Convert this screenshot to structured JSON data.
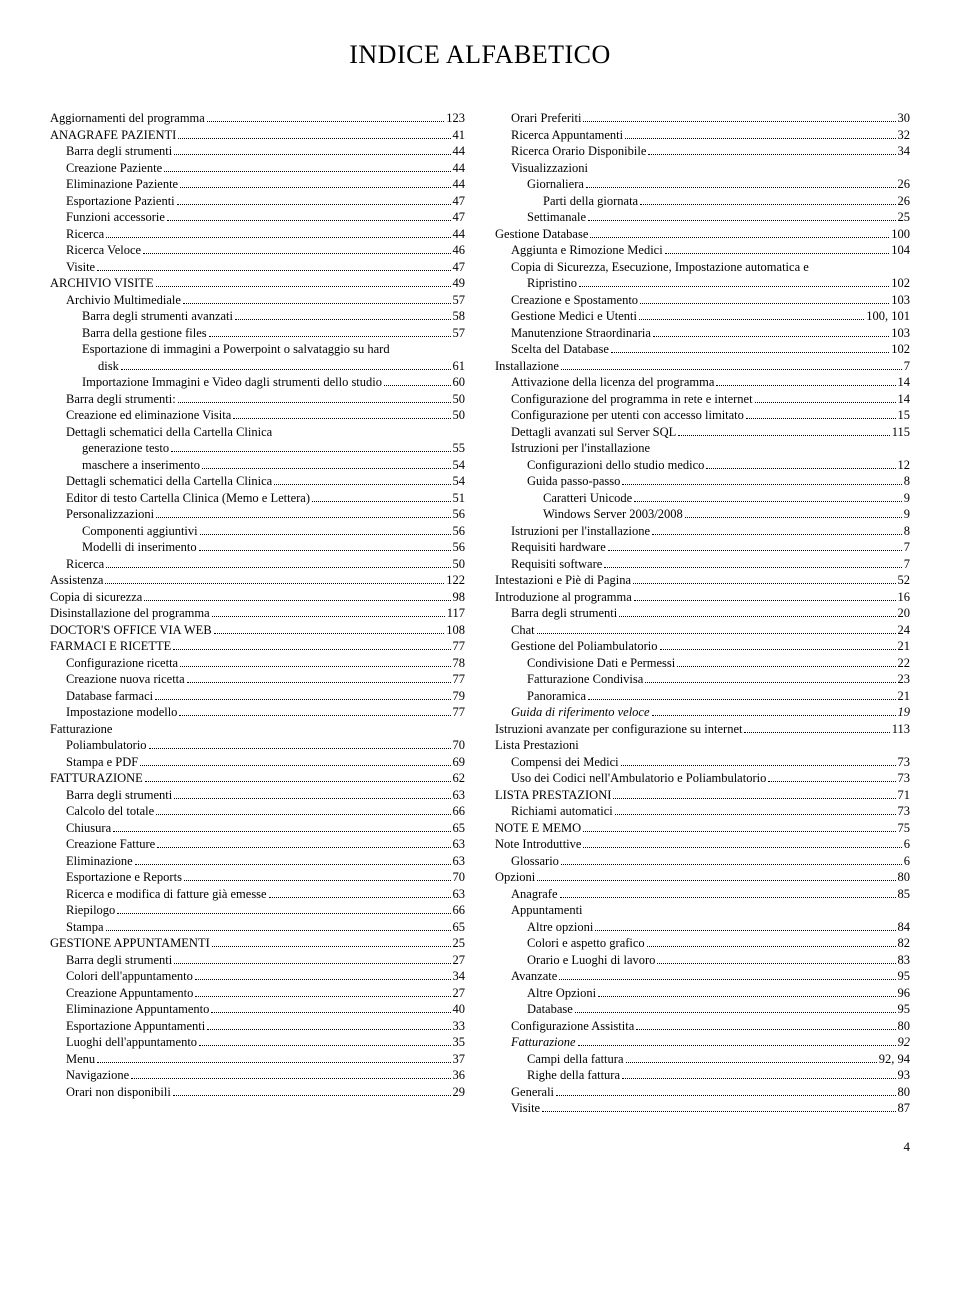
{
  "title": "INDICE ALFABETICO",
  "page_number": "4",
  "left": [
    {
      "l": "Aggiornamenti del programma",
      "p": "123",
      "i": 0
    },
    {
      "l": "ANAGRAFE PAZIENTI",
      "p": "41",
      "i": 0
    },
    {
      "l": "Barra degli strumenti",
      "p": "44",
      "i": 1
    },
    {
      "l": "Creazione Paziente",
      "p": "44",
      "i": 1
    },
    {
      "l": "Eliminazione Paziente",
      "p": "44",
      "i": 1
    },
    {
      "l": "Esportazione Pazienti",
      "p": "47",
      "i": 1
    },
    {
      "l": "Funzioni accessorie",
      "p": "47",
      "i": 1
    },
    {
      "l": "Ricerca",
      "p": "44",
      "i": 1
    },
    {
      "l": "Ricerca Veloce",
      "p": "46",
      "i": 1
    },
    {
      "l": "Visite",
      "p": "47",
      "i": 1
    },
    {
      "l": "ARCHIVIO VISITE",
      "p": "49",
      "i": 0
    },
    {
      "l": "Archivio Multimediale",
      "p": "57",
      "i": 1
    },
    {
      "l": "Barra degli strumenti avanzati",
      "p": "58",
      "i": 2
    },
    {
      "l": "Barra della gestione files",
      "p": "57",
      "i": 2
    },
    {
      "l": "Esportazione di immagini a Powerpoint o salvataggio su hard",
      "i": 2,
      "nowrap": true
    },
    {
      "l": "disk",
      "p": "61",
      "i": 3
    },
    {
      "l": "Importazione Immagini e Video dagli strumenti dello studio",
      "p": "60",
      "i": 2
    },
    {
      "l": "Barra degli strumenti:",
      "p": "50",
      "i": 1
    },
    {
      "l": "Creazione ed eliminazione Visita",
      "p": "50",
      "i": 1
    },
    {
      "l": "Dettagli schematici della Cartella Clinica",
      "i": 1,
      "nowrap": true
    },
    {
      "l": "generazione testo",
      "p": "55",
      "i": 2
    },
    {
      "l": "maschere a inserimento",
      "p": "54",
      "i": 2
    },
    {
      "l": "Dettagli schematici della Cartella Clinica",
      "p": "54",
      "i": 1
    },
    {
      "l": "Editor di testo Cartella Clinica (Memo e Lettera)",
      "p": "51",
      "i": 1
    },
    {
      "l": "Personalizzazioni",
      "p": "56",
      "i": 1
    },
    {
      "l": "Componenti aggiuntivi",
      "p": "56",
      "i": 2
    },
    {
      "l": "Modelli di inserimento",
      "p": "56",
      "i": 2
    },
    {
      "l": "Ricerca",
      "p": "50",
      "i": 1
    },
    {
      "l": "Assistenza",
      "p": "122",
      "i": 0
    },
    {
      "l": "Copia di sicurezza",
      "p": "98",
      "i": 0
    },
    {
      "l": "Disinstallazione del programma",
      "p": "117",
      "i": 0
    },
    {
      "l": "DOCTOR'S OFFICE VIA WEB",
      "p": "108",
      "i": 0
    },
    {
      "l": "FARMACI E RICETTE",
      "p": "77",
      "i": 0
    },
    {
      "l": "Configurazione ricetta",
      "p": "78",
      "i": 1
    },
    {
      "l": "Creazione nuova ricetta",
      "p": "77",
      "i": 1
    },
    {
      "l": "Database farmaci",
      "p": "79",
      "i": 1
    },
    {
      "l": "Impostazione modello",
      "p": "77",
      "i": 1
    },
    {
      "l": "Fatturazione",
      "i": 0,
      "nowrap": true
    },
    {
      "l": "Poliambulatorio",
      "p": "70",
      "i": 1
    },
    {
      "l": "Stampa e PDF",
      "p": "69",
      "i": 1
    },
    {
      "l": "FATTURAZIONE",
      "p": "62",
      "i": 0
    },
    {
      "l": "Barra degli strumenti",
      "p": "63",
      "i": 1
    },
    {
      "l": "Calcolo del totale",
      "p": "66",
      "i": 1
    },
    {
      "l": "Chiusura",
      "p": "65",
      "i": 1
    },
    {
      "l": "Creazione Fatture",
      "p": "63",
      "i": 1
    },
    {
      "l": "Eliminazione",
      "p": "63",
      "i": 1
    },
    {
      "l": "Esportazione e Reports",
      "p": "70",
      "i": 1
    },
    {
      "l": "Ricerca e modifica di fatture già emesse",
      "p": "63",
      "i": 1
    },
    {
      "l": "Riepilogo",
      "p": "66",
      "i": 1
    },
    {
      "l": "Stampa",
      "p": "65",
      "i": 1
    },
    {
      "l": "GESTIONE APPUNTAMENTI",
      "p": "25",
      "i": 0
    },
    {
      "l": "Barra degli strumenti",
      "p": "27",
      "i": 1
    },
    {
      "l": "Colori dell'appuntamento",
      "p": "34",
      "i": 1
    },
    {
      "l": "Creazione Appuntamento",
      "p": "27",
      "i": 1
    },
    {
      "l": "Eliminazione Appuntamento",
      "p": "40",
      "i": 1
    },
    {
      "l": "Esportazione Appuntamenti",
      "p": "33",
      "i": 1
    },
    {
      "l": "Luoghi dell'appuntamento",
      "p": "35",
      "i": 1
    },
    {
      "l": "Menu",
      "p": "37",
      "i": 1
    },
    {
      "l": "Navigazione",
      "p": "36",
      "i": 1
    },
    {
      "l": "Orari non disponibili",
      "p": "29",
      "i": 1
    }
  ],
  "right": [
    {
      "l": "Orari Preferiti",
      "p": "30",
      "i": 1
    },
    {
      "l": "Ricerca Appuntamenti",
      "p": "32",
      "i": 1
    },
    {
      "l": "Ricerca Orario Disponibile",
      "p": "34",
      "i": 1
    },
    {
      "l": "Visualizzazioni",
      "i": 1,
      "nowrap": true
    },
    {
      "l": "Giornaliera",
      "p": "26",
      "i": 2
    },
    {
      "l": "Parti della giornata",
      "p": "26",
      "i": 3
    },
    {
      "l": "Settimanale",
      "p": "25",
      "i": 2
    },
    {
      "l": "Gestione Database",
      "p": "100",
      "i": 0
    },
    {
      "l": "Aggiunta e Rimozione Medici",
      "p": "104",
      "i": 1
    },
    {
      "l": "Copia di Sicurezza, Esecuzione, Impostazione automatica e",
      "i": 1,
      "nowrap": true
    },
    {
      "l": "Ripristino",
      "p": "102",
      "i": 2
    },
    {
      "l": "Creazione e Spostamento",
      "p": "103",
      "i": 1
    },
    {
      "l": "Gestione Medici e Utenti",
      "p": "100, 101",
      "i": 1
    },
    {
      "l": "Manutenzione Straordinaria",
      "p": "103",
      "i": 1
    },
    {
      "l": "Scelta del Database",
      "p": "102",
      "i": 1
    },
    {
      "l": "Installazione",
      "p": "7",
      "i": 0
    },
    {
      "l": "Attivazione della licenza del programma",
      "p": "14",
      "i": 1
    },
    {
      "l": "Configurazione del programma in rete e internet",
      "p": "14",
      "i": 1
    },
    {
      "l": "Configurazione per utenti con accesso limitato",
      "p": "15",
      "i": 1
    },
    {
      "l": "Dettagli avanzati sul Server SQL",
      "p": "115",
      "i": 1
    },
    {
      "l": "Istruzioni per l'installazione",
      "i": 1,
      "nowrap": true
    },
    {
      "l": "Configurazioni dello studio medico",
      "p": "12",
      "i": 2
    },
    {
      "l": "Guida passo-passo",
      "p": "8",
      "i": 2
    },
    {
      "l": "Caratteri Unicode",
      "p": "9",
      "i": 3
    },
    {
      "l": "Windows Server 2003/2008",
      "p": "9",
      "i": 3
    },
    {
      "l": "Istruzioni per l'installazione",
      "p": "8",
      "i": 1
    },
    {
      "l": "Requisiti hardware",
      "p": "7",
      "i": 1
    },
    {
      "l": "Requisiti software",
      "p": "7",
      "i": 1
    },
    {
      "l": "Intestazioni e Piè di Pagina",
      "p": "52",
      "i": 0
    },
    {
      "l": "Introduzione al programma",
      "p": "16",
      "i": 0
    },
    {
      "l": "Barra degli strumenti",
      "p": "20",
      "i": 1
    },
    {
      "l": "Chat",
      "p": "24",
      "i": 1
    },
    {
      "l": "Gestione del Poliambulatorio",
      "p": "21",
      "i": 1
    },
    {
      "l": "Condivisione Dati e Permessi",
      "p": "22",
      "i": 2
    },
    {
      "l": "Fatturazione Condivisa",
      "p": "23",
      "i": 2
    },
    {
      "l": "Panoramica",
      "p": "21",
      "i": 2
    },
    {
      "l": "Guida di riferimento veloce",
      "p": "19",
      "i": 1,
      "italic": true
    },
    {
      "l": "Istruzioni avanzate per configurazione su internet",
      "p": "113",
      "i": 0
    },
    {
      "l": "Lista Prestazioni",
      "i": 0,
      "nowrap": true
    },
    {
      "l": "Compensi dei Medici",
      "p": "73",
      "i": 1
    },
    {
      "l": "Uso dei Codici nell'Ambulatorio e Poliambulatorio",
      "p": "73",
      "i": 1
    },
    {
      "l": "LISTA PRESTAZIONI",
      "p": "71",
      "i": 0
    },
    {
      "l": "Richiami automatici",
      "p": "73",
      "i": 1
    },
    {
      "l": "NOTE E MEMO",
      "p": "75",
      "i": 0
    },
    {
      "l": "Note Introduttive",
      "p": "6",
      "i": 0
    },
    {
      "l": "Glossario",
      "p": "6",
      "i": 1
    },
    {
      "l": "Opzioni",
      "p": "80",
      "i": 0
    },
    {
      "l": "Anagrafe",
      "p": "85",
      "i": 1
    },
    {
      "l": "Appuntamenti",
      "i": 1,
      "nowrap": true
    },
    {
      "l": "Altre opzioni",
      "p": "84",
      "i": 2
    },
    {
      "l": "Colori e aspetto grafico",
      "p": "82",
      "i": 2
    },
    {
      "l": "Orario e Luoghi di lavoro",
      "p": "83",
      "i": 2
    },
    {
      "l": "Avanzate",
      "p": "95",
      "i": 1
    },
    {
      "l": "Altre Opzioni",
      "p": "96",
      "i": 2
    },
    {
      "l": "Database",
      "p": "95",
      "i": 2
    },
    {
      "l": "Configurazione Assistita",
      "p": "80",
      "i": 1
    },
    {
      "l": "Fatturazione",
      "p": "92",
      "i": 1,
      "italic": true
    },
    {
      "l": "Campi della fattura",
      "p": "92, 94",
      "i": 2
    },
    {
      "l": "Righe della fattura",
      "p": "93",
      "i": 2
    },
    {
      "l": "Generali",
      "p": "80",
      "i": 1
    },
    {
      "l": "Visite",
      "p": "87",
      "i": 1
    }
  ]
}
